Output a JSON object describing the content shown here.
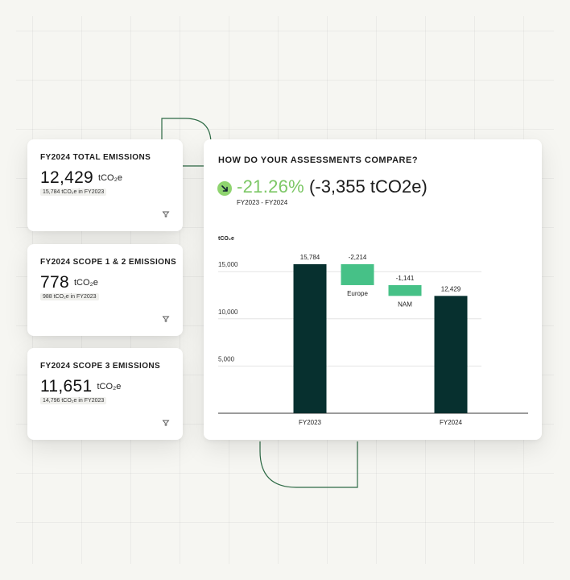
{
  "kpis": [
    {
      "title": "FY2024 TOTAL EMISSIONS",
      "value": "12,429",
      "unit": "tCO₂e",
      "comparison": "15,784 tCO₂e in FY2023"
    },
    {
      "title": "FY2024 SCOPE 1 & 2 EMISSIONS",
      "value": "778",
      "unit": "tCO₂e",
      "comparison": "988 tCO₂e in FY2023"
    },
    {
      "title": "FY2024 SCOPE 3 EMISSIONS",
      "value": "11,651",
      "unit": "tCO₂e",
      "comparison": "14,796 tCO₂e in FY2023"
    }
  ],
  "comparison": {
    "title": "HOW DO YOUR ASSESSMENTS COMPARE?",
    "change_percent": "-21.26%",
    "change_absolute": "(-3,355 tCO2e)",
    "period": "FY2023 - FY2024"
  },
  "colors": {
    "dark_bar": "#07302f",
    "delta_bar": "#46c187",
    "change_green": "#7cc765",
    "accent_line": "#2d6a45"
  },
  "chart_data": {
    "type": "bar",
    "subtype": "waterfall",
    "ylabel": "tCO₂e",
    "ylim": [
      0,
      15784
    ],
    "yticks": [
      5000,
      10000,
      15000
    ],
    "ytick_labels": [
      "5,000",
      "10,000",
      "15,000"
    ],
    "bars": [
      {
        "category": "FY2023",
        "kind": "total",
        "value": 15784,
        "label": "15,784"
      },
      {
        "category": "Europe",
        "kind": "delta",
        "value": -2214,
        "label": "-2,214"
      },
      {
        "category": "NAM",
        "kind": "delta",
        "value": -1141,
        "label": "-1,141"
      },
      {
        "category": "FY2024",
        "kind": "total",
        "value": 12429,
        "label": "12,429"
      }
    ]
  }
}
